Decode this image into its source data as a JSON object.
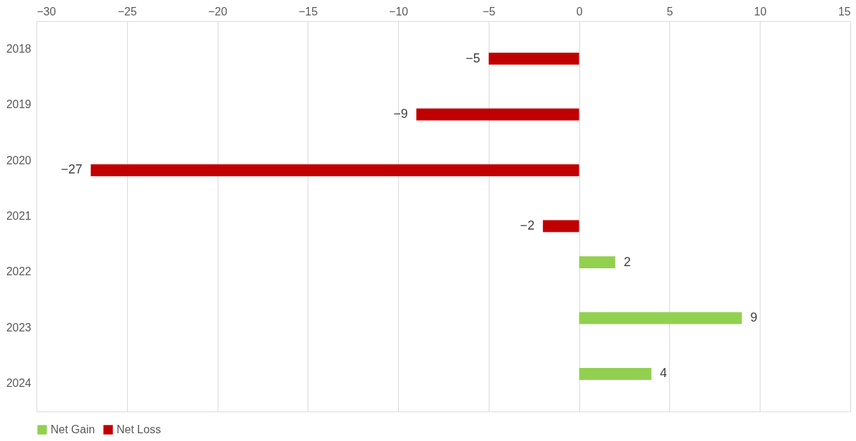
{
  "chart_data": {
    "type": "bar",
    "orientation": "horizontal",
    "categories": [
      "2018",
      "2019",
      "2020",
      "2021",
      "2022",
      "2023",
      "2024"
    ],
    "series": [
      {
        "name": "Net Gain",
        "color": "#92d050",
        "values": [
          null,
          null,
          null,
          null,
          2,
          9,
          4
        ]
      },
      {
        "name": "Net Loss",
        "color": "#c00000",
        "values": [
          -5,
          -9,
          -27,
          -2,
          null,
          null,
          null
        ]
      }
    ],
    "xlim": [
      -30,
      15
    ],
    "xticks": [
      -30,
      -25,
      -20,
      -15,
      -10,
      -5,
      0,
      5,
      10,
      15
    ],
    "grid": "x",
    "legend": "bottom",
    "data_labels": true
  }
}
